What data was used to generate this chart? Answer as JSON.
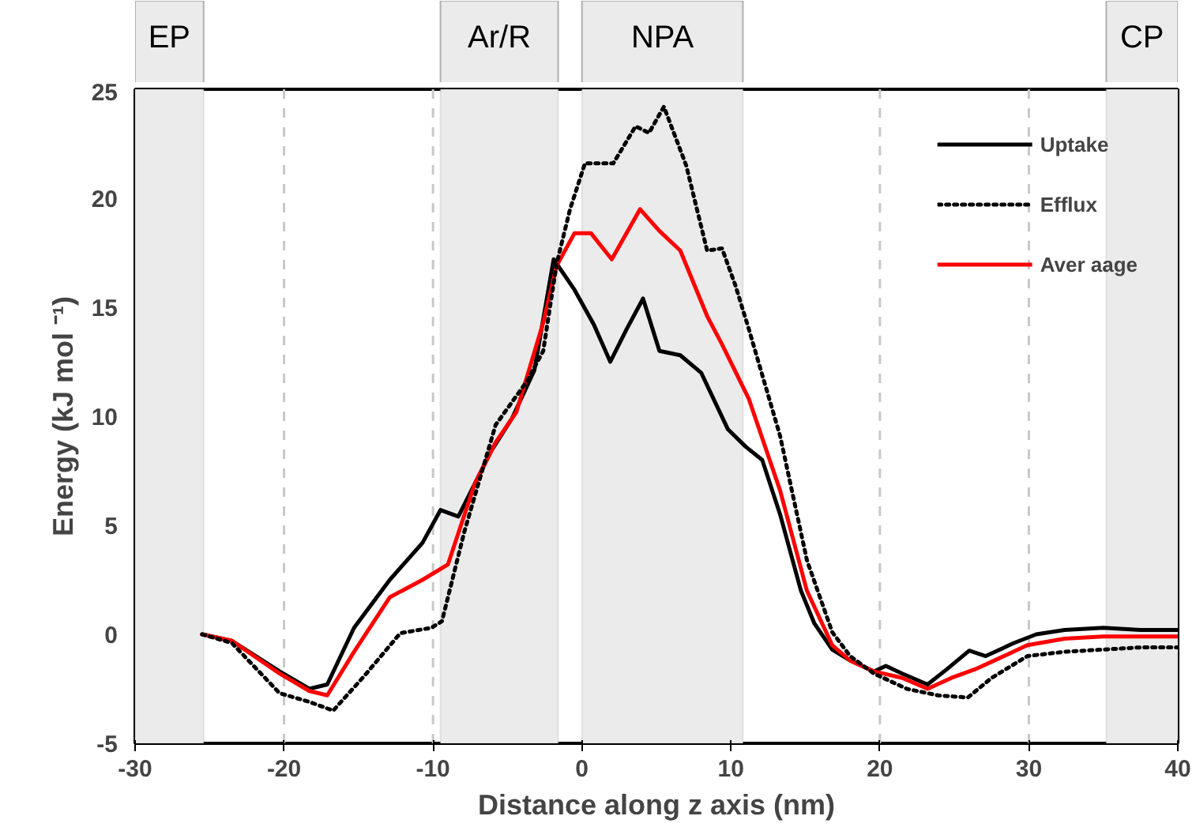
{
  "chart_data": {
    "type": "line",
    "xlabel": "Distance along z axis (nm)",
    "ylabel": "Energy (kJ mol ⁻¹)",
    "xlim": [
      -30,
      40
    ],
    "xticks": [
      -30,
      -20,
      -10,
      0,
      10,
      20,
      30,
      40
    ],
    "ylim": [
      -5,
      25
    ],
    "yticks": [
      -5,
      0,
      5,
      10,
      15,
      20,
      25
    ],
    "grid": false,
    "legend": "top right",
    "bands": [
      {
        "axis": "x",
        "from": -30,
        "to": -25.4,
        "label": "EP",
        "color": "#ebebeb"
      },
      {
        "axis": "x",
        "from": -9.5,
        "to": -1.6,
        "label": "Ar/R",
        "color": "#ebebeb"
      },
      {
        "axis": "x",
        "from": 0,
        "to": 10.8,
        "label": "NPA",
        "color": "#ebebeb"
      },
      {
        "axis": "x",
        "from": 35.2,
        "to": 40,
        "label": "CP",
        "color": "#ebebeb"
      }
    ],
    "ref_lines": [
      {
        "axis": "x",
        "value": -20,
        "color": "#c8c8c8",
        "line_style": "dashed"
      },
      {
        "axis": "x",
        "value": -10,
        "color": "#c8c8c8",
        "line_style": "dashed"
      },
      {
        "axis": "x",
        "value": 20,
        "color": "#c8c8c8",
        "line_style": "dashed"
      },
      {
        "axis": "x",
        "value": 30,
        "color": "#c8c8c8",
        "line_style": "dashed"
      }
    ],
    "series": [
      {
        "name": "Uptake",
        "color": "#000000",
        "line_style": "solid",
        "x": [
          -25.5,
          -23.5,
          -20.3,
          -18.3,
          -17.1,
          -15.3,
          -12.9,
          -10.7,
          -9.5,
          -8.3,
          -6.1,
          -4.7,
          -3.2,
          -1.9,
          -0.5,
          0.8,
          1.9,
          3.0,
          4.1,
          5.2,
          6.6,
          8.0,
          9.8,
          11.0,
          12.1,
          13.3,
          14.7,
          15.6,
          16.8,
          18.0,
          19.6,
          20.4,
          21.5,
          23.2,
          24.5,
          26.0,
          27.1,
          29.0,
          30.5,
          32.4,
          35.0,
          37.5,
          40.0
        ],
        "values": [
          0,
          -0.3,
          -1.7,
          -2.5,
          -2.3,
          0.3,
          2.5,
          4.2,
          5.7,
          5.4,
          8.4,
          9.9,
          12.1,
          17.2,
          15.8,
          14.2,
          12.5,
          14.0,
          15.4,
          13.0,
          12.8,
          12.0,
          9.4,
          8.6,
          8.0,
          5.5,
          2.0,
          0.5,
          -0.7,
          -1.2,
          -1.7,
          -1.45,
          -1.8,
          -2.3,
          -1.6,
          -0.75,
          -1.0,
          -0.4,
          0,
          0.2,
          0.3,
          0.2,
          0.2
        ]
      },
      {
        "name": "Efflux",
        "color": "#000000",
        "line_style": "dotted",
        "x": [
          -25.5,
          -23.5,
          -20.3,
          -18.3,
          -16.7,
          -14.6,
          -12.2,
          -10.1,
          -9.4,
          -7.9,
          -5.8,
          -3.7,
          -2.6,
          -1.7,
          -0.8,
          0.2,
          2.1,
          3.6,
          4.5,
          5.5,
          7.0,
          8.4,
          9.4,
          10.3,
          11.2,
          13.3,
          15.1,
          16.8,
          18.0,
          19.6,
          21.8,
          23.9,
          25.9,
          27.5,
          29.9,
          32.4,
          35.0,
          37.5,
          40.0
        ],
        "values": [
          0,
          -0.4,
          -2.7,
          -3.1,
          -3.5,
          -1.9,
          0.05,
          0.3,
          0.6,
          4.7,
          9.6,
          11.6,
          13.0,
          17.0,
          19.5,
          21.6,
          21.6,
          23.3,
          23.0,
          24.2,
          21.5,
          17.6,
          17.7,
          16.0,
          14.0,
          9.1,
          3.4,
          0.1,
          -1.0,
          -1.8,
          -2.5,
          -2.8,
          -2.9,
          -2.0,
          -1.0,
          -0.8,
          -0.7,
          -0.6,
          -0.6
        ]
      },
      {
        "name": "Aver aage",
        "color": "#ff0000",
        "line_style": "solid",
        "x": [
          -25.5,
          -23.5,
          -20.3,
          -18.3,
          -17.1,
          -15.3,
          -12.9,
          -10.7,
          -9.0,
          -7.2,
          -5.8,
          -4.4,
          -2.6,
          -1.7,
          -0.5,
          0.6,
          2.0,
          3.9,
          5.2,
          6.6,
          8.4,
          9.4,
          11.2,
          13.3,
          15.1,
          16.8,
          18.0,
          19.6,
          21.5,
          23.2,
          24.8,
          26.4,
          28.0,
          29.9,
          32.4,
          35.0,
          37.5,
          40.0
        ],
        "values": [
          0,
          -0.3,
          -1.8,
          -2.6,
          -2.8,
          -0.8,
          1.7,
          2.5,
          3.2,
          6.9,
          8.8,
          10.2,
          14.3,
          16.9,
          18.4,
          18.4,
          17.2,
          19.5,
          18.5,
          17.6,
          14.6,
          13.3,
          10.8,
          6.6,
          2.0,
          -0.5,
          -1.2,
          -1.7,
          -2.0,
          -2.5,
          -2.0,
          -1.6,
          -1.1,
          -0.5,
          -0.2,
          -0.1,
          -0.1,
          -0.1
        ]
      }
    ]
  }
}
